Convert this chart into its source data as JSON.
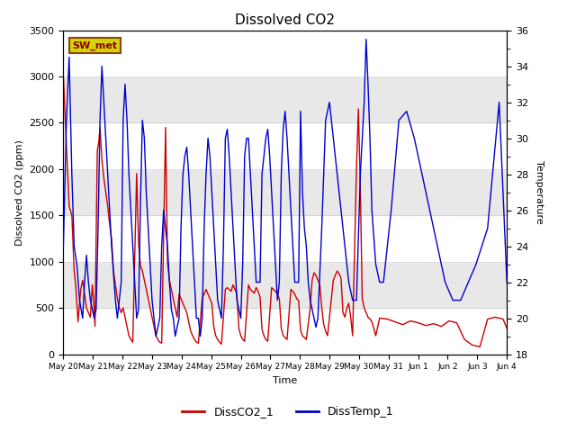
{
  "title": "Dissolved CO2",
  "xlabel": "Time",
  "ylabel_left": "Dissolved CO2 (ppm)",
  "ylabel_right": "Temperature",
  "ylim_left": [
    0,
    3500
  ],
  "ylim_right": [
    18,
    36
  ],
  "background_color": "#ffffff",
  "plot_bg_color": "#e8e8e8",
  "legend_entries": [
    "DissCO2_1",
    "DissTemp_1"
  ],
  "legend_colors": [
    "#cc0000",
    "#0000cc"
  ],
  "sw_met_label": "SW_met",
  "sw_met_bg": "#d4d400",
  "sw_met_border": "#8B4513",
  "tick_labels": [
    "May 20",
    "May 21",
    "May 22",
    "May 23",
    "May 24",
    "May 25",
    "May 26",
    "May 27",
    "May 28",
    "May 29",
    "May 30",
    "May 31",
    "Jun 1",
    "Jun 2",
    "Jun 3",
    "Jun 4"
  ],
  "co2_data": [
    [
      0,
      3000
    ],
    [
      0.08,
      2250
    ],
    [
      0.15,
      1600
    ],
    [
      0.22,
      1500
    ],
    [
      0.28,
      900
    ],
    [
      0.32,
      750
    ],
    [
      0.38,
      350
    ],
    [
      0.45,
      700
    ],
    [
      0.5,
      800
    ],
    [
      0.55,
      650
    ],
    [
      0.6,
      500
    ],
    [
      0.65,
      450
    ],
    [
      0.7,
      400
    ],
    [
      0.75,
      750
    ],
    [
      0.78,
      600
    ],
    [
      0.82,
      300
    ],
    [
      0.88,
      2200
    ],
    [
      0.92,
      2300
    ],
    [
      0.95,
      2450
    ],
    [
      1.0,
      2100
    ],
    [
      1.05,
      1900
    ],
    [
      1.1,
      1750
    ],
    [
      1.15,
      1600
    ],
    [
      1.2,
      1400
    ],
    [
      1.25,
      1250
    ],
    [
      1.3,
      900
    ],
    [
      1.35,
      750
    ],
    [
      1.4,
      600
    ],
    [
      1.45,
      500
    ],
    [
      1.5,
      450
    ],
    [
      1.55,
      500
    ],
    [
      1.6,
      400
    ],
    [
      1.65,
      300
    ],
    [
      1.7,
      200
    ],
    [
      1.75,
      160
    ],
    [
      1.8,
      130
    ],
    [
      1.9,
      1950
    ],
    [
      1.95,
      1200
    ],
    [
      2.0,
      950
    ],
    [
      2.05,
      900
    ],
    [
      2.1,
      800
    ],
    [
      2.15,
      700
    ],
    [
      2.2,
      600
    ],
    [
      2.25,
      500
    ],
    [
      2.3,
      400
    ],
    [
      2.35,
      300
    ],
    [
      2.4,
      200
    ],
    [
      2.45,
      160
    ],
    [
      2.5,
      130
    ],
    [
      2.55,
      120
    ],
    [
      2.65,
      2450
    ],
    [
      2.7,
      1000
    ],
    [
      2.75,
      800
    ],
    [
      2.8,
      700
    ],
    [
      2.85,
      600
    ],
    [
      2.9,
      500
    ],
    [
      2.95,
      400
    ],
    [
      3.0,
      650
    ],
    [
      3.05,
      600
    ],
    [
      3.1,
      550
    ],
    [
      3.15,
      500
    ],
    [
      3.2,
      450
    ],
    [
      3.25,
      350
    ],
    [
      3.3,
      250
    ],
    [
      3.35,
      200
    ],
    [
      3.4,
      160
    ],
    [
      3.45,
      130
    ],
    [
      3.5,
      120
    ],
    [
      3.6,
      600
    ],
    [
      3.65,
      650
    ],
    [
      3.7,
      700
    ],
    [
      3.75,
      650
    ],
    [
      3.8,
      600
    ],
    [
      3.85,
      550
    ],
    [
      3.9,
      300
    ],
    [
      3.95,
      200
    ],
    [
      4.0,
      160
    ],
    [
      4.05,
      130
    ],
    [
      4.1,
      110
    ],
    [
      4.2,
      700
    ],
    [
      4.25,
      720
    ],
    [
      4.3,
      700
    ],
    [
      4.35,
      680
    ],
    [
      4.4,
      750
    ],
    [
      4.45,
      700
    ],
    [
      4.5,
      650
    ],
    [
      4.55,
      280
    ],
    [
      4.6,
      200
    ],
    [
      4.65,
      160
    ],
    [
      4.7,
      140
    ],
    [
      4.8,
      750
    ],
    [
      4.85,
      700
    ],
    [
      4.9,
      680
    ],
    [
      4.95,
      660
    ],
    [
      5.0,
      720
    ],
    [
      5.05,
      680
    ],
    [
      5.1,
      620
    ],
    [
      5.15,
      270
    ],
    [
      5.2,
      200
    ],
    [
      5.25,
      160
    ],
    [
      5.3,
      140
    ],
    [
      5.4,
      720
    ],
    [
      5.45,
      700
    ],
    [
      5.5,
      680
    ],
    [
      5.55,
      650
    ],
    [
      5.6,
      600
    ],
    [
      5.65,
      280
    ],
    [
      5.7,
      200
    ],
    [
      5.75,
      180
    ],
    [
      5.8,
      160
    ],
    [
      5.9,
      700
    ],
    [
      5.95,
      680
    ],
    [
      6.0,
      650
    ],
    [
      6.05,
      600
    ],
    [
      6.1,
      580
    ],
    [
      6.15,
      260
    ],
    [
      6.2,
      200
    ],
    [
      6.25,
      180
    ],
    [
      6.3,
      160
    ],
    [
      6.4,
      500
    ],
    [
      6.45,
      800
    ],
    [
      6.5,
      880
    ],
    [
      6.55,
      850
    ],
    [
      6.6,
      800
    ],
    [
      6.65,
      750
    ],
    [
      6.7,
      500
    ],
    [
      6.75,
      320
    ],
    [
      6.8,
      250
    ],
    [
      6.85,
      200
    ],
    [
      7.0,
      800
    ],
    [
      7.05,
      850
    ],
    [
      7.1,
      900
    ],
    [
      7.15,
      870
    ],
    [
      7.2,
      820
    ],
    [
      7.25,
      450
    ],
    [
      7.3,
      400
    ],
    [
      7.35,
      500
    ],
    [
      7.4,
      550
    ],
    [
      7.45,
      400
    ],
    [
      7.5,
      200
    ],
    [
      7.6,
      2000
    ],
    [
      7.65,
      2650
    ],
    [
      7.7,
      1800
    ],
    [
      7.75,
      600
    ],
    [
      7.8,
      500
    ],
    [
      7.85,
      450
    ],
    [
      7.9,
      400
    ],
    [
      7.95,
      380
    ],
    [
      8.0,
      350
    ],
    [
      8.05,
      280
    ],
    [
      8.1,
      200
    ],
    [
      8.2,
      390
    ],
    [
      8.4,
      380
    ],
    [
      8.6,
      350
    ],
    [
      8.8,
      320
    ],
    [
      9.0,
      360
    ],
    [
      9.2,
      340
    ],
    [
      9.4,
      310
    ],
    [
      9.6,
      330
    ],
    [
      9.8,
      300
    ],
    [
      10.0,
      360
    ],
    [
      10.2,
      340
    ],
    [
      10.4,
      160
    ],
    [
      10.6,
      100
    ],
    [
      10.8,
      80
    ],
    [
      11.0,
      380
    ],
    [
      11.2,
      400
    ],
    [
      11.4,
      380
    ],
    [
      11.5,
      280
    ]
  ],
  "temp_data": [
    [
      0,
      24
    ],
    [
      0.08,
      31
    ],
    [
      0.15,
      34.5
    ],
    [
      0.22,
      28
    ],
    [
      0.28,
      24
    ],
    [
      0.35,
      23
    ],
    [
      0.42,
      21
    ],
    [
      0.5,
      20
    ],
    [
      0.55,
      22
    ],
    [
      0.6,
      23.5
    ],
    [
      0.65,
      22
    ],
    [
      0.7,
      21
    ],
    [
      0.75,
      20.5
    ],
    [
      0.8,
      20
    ],
    [
      0.85,
      20.5
    ],
    [
      0.9,
      25
    ],
    [
      0.95,
      31
    ],
    [
      1.0,
      34
    ],
    [
      1.05,
      32
    ],
    [
      1.1,
      30
    ],
    [
      1.15,
      28
    ],
    [
      1.2,
      26
    ],
    [
      1.25,
      24
    ],
    [
      1.3,
      22.5
    ],
    [
      1.35,
      21
    ],
    [
      1.4,
      20
    ],
    [
      1.5,
      22
    ],
    [
      1.55,
      31
    ],
    [
      1.6,
      33
    ],
    [
      1.65,
      31
    ],
    [
      1.7,
      28
    ],
    [
      1.75,
      26
    ],
    [
      1.8,
      24
    ],
    [
      1.85,
      22
    ],
    [
      1.9,
      20
    ],
    [
      1.95,
      20.5
    ],
    [
      2.0,
      26.5
    ],
    [
      2.05,
      31
    ],
    [
      2.1,
      30
    ],
    [
      2.15,
      27
    ],
    [
      2.2,
      25
    ],
    [
      2.25,
      23
    ],
    [
      2.3,
      21
    ],
    [
      2.35,
      20
    ],
    [
      2.4,
      19
    ],
    [
      2.5,
      20
    ],
    [
      2.55,
      24
    ],
    [
      2.6,
      26
    ],
    [
      2.65,
      25
    ],
    [
      2.7,
      24
    ],
    [
      2.75,
      22
    ],
    [
      2.8,
      20.5
    ],
    [
      2.85,
      20
    ],
    [
      2.9,
      19
    ],
    [
      3.0,
      20
    ],
    [
      3.05,
      25
    ],
    [
      3.1,
      28
    ],
    [
      3.15,
      29
    ],
    [
      3.2,
      29.5
    ],
    [
      3.25,
      28
    ],
    [
      3.3,
      26
    ],
    [
      3.35,
      24
    ],
    [
      3.4,
      22
    ],
    [
      3.45,
      20
    ],
    [
      3.5,
      20
    ],
    [
      3.55,
      19
    ],
    [
      3.6,
      20
    ],
    [
      3.65,
      25
    ],
    [
      3.7,
      28
    ],
    [
      3.75,
      30
    ],
    [
      3.8,
      29
    ],
    [
      3.85,
      27
    ],
    [
      3.9,
      25
    ],
    [
      3.95,
      23
    ],
    [
      4.0,
      21
    ],
    [
      4.1,
      20
    ],
    [
      4.15,
      24
    ],
    [
      4.2,
      30
    ],
    [
      4.25,
      30.5
    ],
    [
      4.3,
      29
    ],
    [
      4.35,
      27
    ],
    [
      4.4,
      25
    ],
    [
      4.45,
      23
    ],
    [
      4.5,
      21
    ],
    [
      4.6,
      20
    ],
    [
      4.65,
      23
    ],
    [
      4.7,
      29
    ],
    [
      4.75,
      30
    ],
    [
      4.8,
      30
    ],
    [
      4.85,
      28
    ],
    [
      4.9,
      26
    ],
    [
      4.95,
      24
    ],
    [
      5.0,
      22
    ],
    [
      5.1,
      22
    ],
    [
      5.15,
      28
    ],
    [
      5.2,
      29
    ],
    [
      5.25,
      30
    ],
    [
      5.3,
      30.5
    ],
    [
      5.35,
      29
    ],
    [
      5.4,
      27
    ],
    [
      5.45,
      25
    ],
    [
      5.5,
      23
    ],
    [
      5.55,
      21
    ],
    [
      5.6,
      22
    ],
    [
      5.65,
      28
    ],
    [
      5.7,
      30.5
    ],
    [
      5.75,
      31.5
    ],
    [
      5.8,
      30
    ],
    [
      5.85,
      28
    ],
    [
      5.9,
      26
    ],
    [
      5.95,
      24
    ],
    [
      6.0,
      22
    ],
    [
      6.1,
      22
    ],
    [
      6.15,
      31.5
    ],
    [
      6.2,
      27
    ],
    [
      6.25,
      25
    ],
    [
      6.3,
      24
    ],
    [
      6.35,
      22
    ],
    [
      6.4,
      21
    ],
    [
      6.45,
      20.5
    ],
    [
      6.5,
      20
    ],
    [
      6.55,
      19.5
    ],
    [
      6.6,
      20
    ],
    [
      6.7,
      25
    ],
    [
      6.8,
      31
    ],
    [
      6.9,
      32
    ],
    [
      7.0,
      30
    ],
    [
      7.1,
      28
    ],
    [
      7.2,
      26
    ],
    [
      7.3,
      24
    ],
    [
      7.4,
      22
    ],
    [
      7.5,
      21
    ],
    [
      7.6,
      21
    ],
    [
      7.7,
      28
    ],
    [
      7.8,
      32
    ],
    [
      7.85,
      35.5
    ],
    [
      7.9,
      33
    ],
    [
      7.95,
      30
    ],
    [
      8.0,
      26
    ],
    [
      8.1,
      23
    ],
    [
      8.2,
      22
    ],
    [
      8.3,
      22
    ],
    [
      8.5,
      26
    ],
    [
      8.7,
      31
    ],
    [
      8.9,
      31.5
    ],
    [
      9.1,
      30
    ],
    [
      9.3,
      28
    ],
    [
      9.5,
      26
    ],
    [
      9.7,
      24
    ],
    [
      9.9,
      22
    ],
    [
      10.1,
      21
    ],
    [
      10.3,
      21
    ],
    [
      10.5,
      22
    ],
    [
      10.7,
      23
    ],
    [
      11.0,
      25
    ],
    [
      11.3,
      32
    ],
    [
      11.5,
      22
    ]
  ]
}
